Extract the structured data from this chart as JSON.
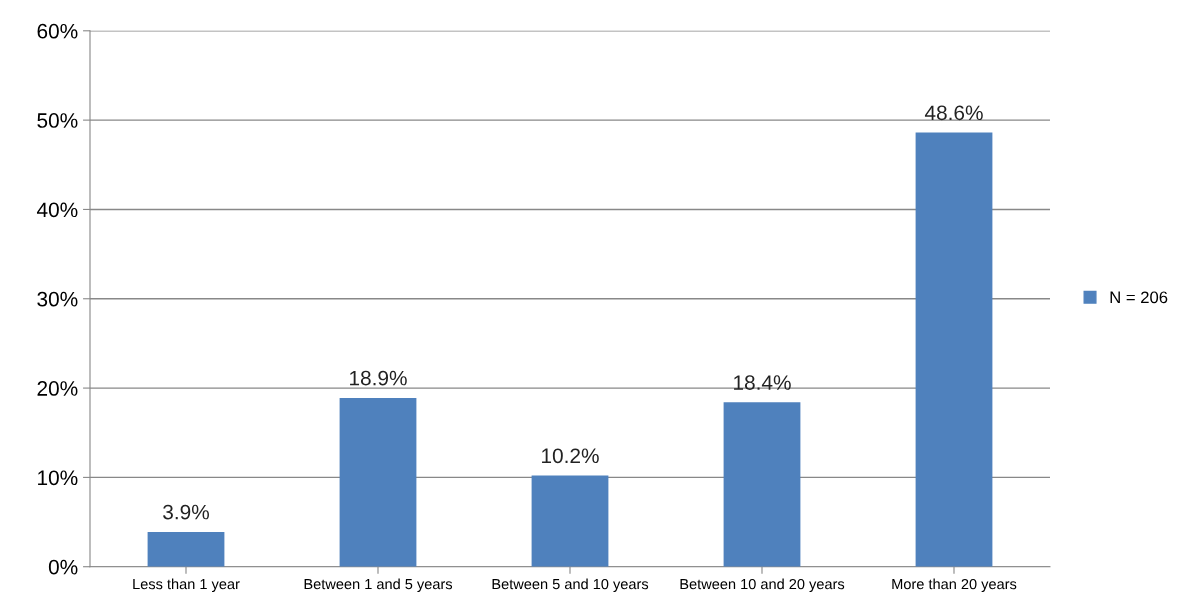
{
  "chart_data": {
    "type": "bar",
    "categories": [
      "Less than 1 year",
      "Between 1 and 5 years",
      "Between 5 and 10 years",
      "Between 10 and 20 years",
      "More than 20 years"
    ],
    "series": [
      {
        "name": "N = 206",
        "color": "#4f81bd",
        "values": [
          3.9,
          18.9,
          10.2,
          18.4,
          48.6
        ],
        "value_labels": [
          "3.9%",
          "18.9%",
          "10.2%",
          "18.4%",
          "48.6%"
        ]
      }
    ],
    "ylim": [
      0,
      60
    ],
    "yticks": [
      {
        "value": 0,
        "label": "0%"
      },
      {
        "value": 10,
        "label": "10%"
      },
      {
        "value": 20,
        "label": "20%"
      },
      {
        "value": 30,
        "label": "30%"
      },
      {
        "value": 40,
        "label": "40%"
      },
      {
        "value": 50,
        "label": "50%"
      },
      {
        "value": 60,
        "label": "60%"
      }
    ],
    "grid": "y",
    "legend": "right"
  }
}
